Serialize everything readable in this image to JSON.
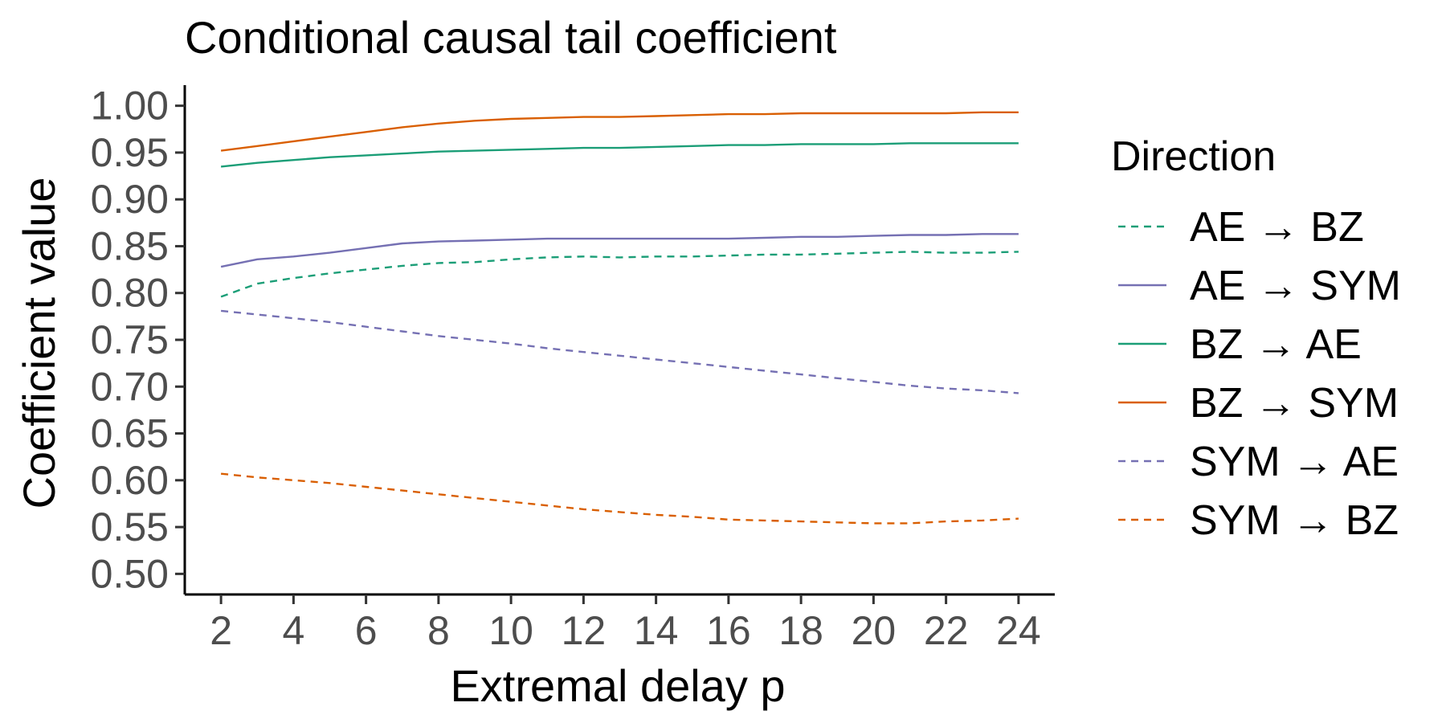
{
  "chart_data": {
    "type": "line",
    "title": "Conditional causal tail coefficient",
    "xlabel": "Extremal delay p",
    "ylabel": "Coefficient value",
    "xlim": [
      1,
      25
    ],
    "ylim": [
      0.478,
      1.022
    ],
    "xticks": [
      2,
      4,
      6,
      8,
      10,
      12,
      14,
      16,
      18,
      20,
      22,
      24
    ],
    "yticks": [
      0.5,
      0.55,
      0.6,
      0.65,
      0.7,
      0.75,
      0.8,
      0.85,
      0.9,
      0.95,
      1.0
    ],
    "ytick_labels": [
      "0.50",
      "0.55",
      "0.60",
      "0.65",
      "0.70",
      "0.75",
      "0.80",
      "0.85",
      "0.90",
      "0.95",
      "1.00"
    ],
    "x": [
      2,
      3,
      4,
      5,
      6,
      7,
      8,
      9,
      10,
      11,
      12,
      13,
      14,
      15,
      16,
      17,
      18,
      19,
      20,
      21,
      22,
      23,
      24
    ],
    "legend": {
      "title": "Direction",
      "position": "right"
    },
    "grid": false,
    "series": [
      {
        "name": "AE → BZ",
        "color": "#1B9E77",
        "dash": "dashed",
        "values": [
          0.796,
          0.81,
          0.816,
          0.821,
          0.825,
          0.829,
          0.832,
          0.833,
          0.836,
          0.838,
          0.839,
          0.838,
          0.839,
          0.839,
          0.84,
          0.841,
          0.841,
          0.842,
          0.843,
          0.844,
          0.843,
          0.843,
          0.844
        ]
      },
      {
        "name": "AE → SYM",
        "color": "#7570B3",
        "dash": "solid",
        "values": [
          0.828,
          0.836,
          0.839,
          0.843,
          0.848,
          0.853,
          0.855,
          0.856,
          0.857,
          0.858,
          0.858,
          0.858,
          0.858,
          0.858,
          0.858,
          0.859,
          0.86,
          0.86,
          0.861,
          0.862,
          0.862,
          0.863,
          0.863
        ]
      },
      {
        "name": "BZ → AE",
        "color": "#1B9E77",
        "dash": "solid",
        "values": [
          0.935,
          0.939,
          0.942,
          0.945,
          0.947,
          0.949,
          0.951,
          0.952,
          0.953,
          0.954,
          0.955,
          0.955,
          0.956,
          0.957,
          0.958,
          0.958,
          0.959,
          0.959,
          0.959,
          0.96,
          0.96,
          0.96,
          0.96
        ]
      },
      {
        "name": "BZ → SYM",
        "color": "#D95F02",
        "dash": "solid",
        "values": [
          0.952,
          0.957,
          0.962,
          0.967,
          0.972,
          0.977,
          0.981,
          0.984,
          0.986,
          0.987,
          0.988,
          0.988,
          0.989,
          0.99,
          0.991,
          0.991,
          0.992,
          0.992,
          0.992,
          0.992,
          0.992,
          0.993,
          0.993
        ]
      },
      {
        "name": "SYM → AE",
        "color": "#7570B3",
        "dash": "dashed",
        "values": [
          0.781,
          0.777,
          0.773,
          0.769,
          0.764,
          0.759,
          0.754,
          0.75,
          0.746,
          0.741,
          0.737,
          0.733,
          0.729,
          0.725,
          0.721,
          0.717,
          0.713,
          0.709,
          0.705,
          0.701,
          0.698,
          0.696,
          0.693
        ]
      },
      {
        "name": "SYM → BZ",
        "color": "#D95F02",
        "dash": "dashed",
        "values": [
          0.607,
          0.603,
          0.6,
          0.597,
          0.593,
          0.589,
          0.585,
          0.581,
          0.577,
          0.573,
          0.569,
          0.566,
          0.563,
          0.561,
          0.558,
          0.557,
          0.556,
          0.555,
          0.554,
          0.554,
          0.556,
          0.557,
          0.559
        ]
      }
    ]
  }
}
